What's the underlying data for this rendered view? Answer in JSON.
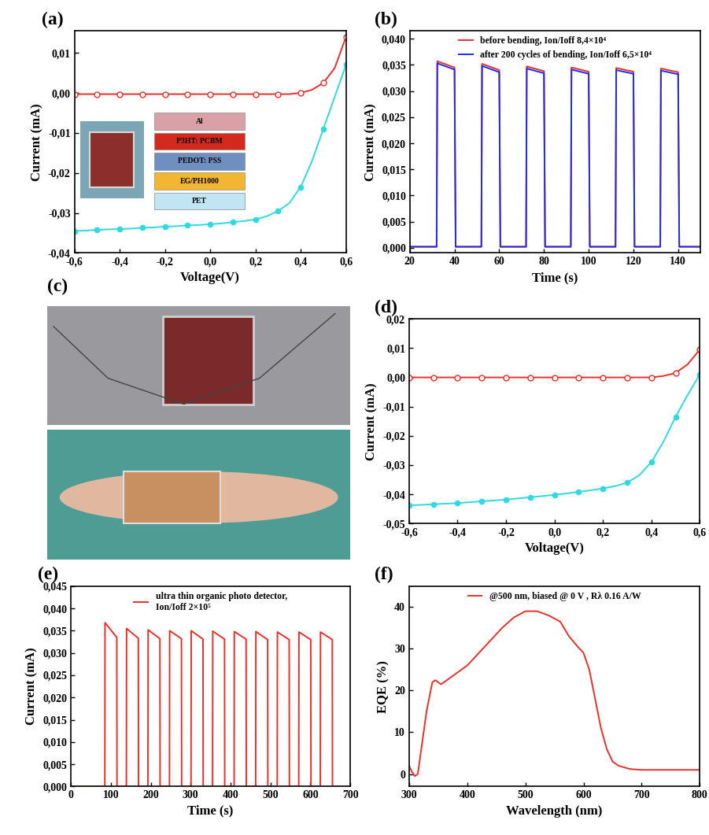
{
  "chart_data": [
    {
      "type": "line",
      "title": "(a)",
      "x_label": "Voltage(V)",
      "y_label": "Current (mA)",
      "x": [
        -0.6,
        -0.55,
        -0.5,
        -0.45,
        -0.4,
        -0.35,
        -0.3,
        -0.25,
        -0.2,
        -0.15,
        -0.1,
        -0.05,
        0.0,
        0.05,
        0.1,
        0.15,
        0.2,
        0.25,
        0.3,
        0.35,
        0.4,
        0.45,
        0.5,
        0.55,
        0.6
      ],
      "xlim": [
        -0.6,
        0.6
      ],
      "xticks": [
        {
          "value": -0.6,
          "label": "-0,6"
        },
        {
          "value": -0.4,
          "label": "-0,4"
        },
        {
          "value": -0.2,
          "label": "-0,2"
        },
        {
          "value": 0.0,
          "label": "0,0"
        },
        {
          "value": 0.2,
          "label": "0,2"
        },
        {
          "value": 0.4,
          "label": "0,4"
        },
        {
          "value": 0.6,
          "label": "0,6"
        }
      ],
      "ylim": [
        -0.04,
        0.0155
      ],
      "yticks": [
        {
          "value": -0.04,
          "label": "-0,04"
        },
        {
          "value": -0.03,
          "label": "-0,03"
        },
        {
          "value": -0.02,
          "label": "-0,02"
        },
        {
          "value": -0.01,
          "label": "-0,01"
        },
        {
          "value": 0.0,
          "label": "0,00"
        },
        {
          "value": 0.01,
          "label": "0,01"
        }
      ],
      "annotations": [
        "Al",
        "P3HT: PCBM",
        "PEDOT: PSS",
        "EG/PH1000",
        "PET"
      ],
      "series": [
        {
          "color": "#e8302a",
          "marker": "open_circle",
          "line_style": "solid",
          "values": [
            -0.0003,
            -0.0003,
            -0.0003,
            -0.0003,
            -0.0003,
            -0.0003,
            -0.0003,
            -0.0003,
            -0.0003,
            -0.0003,
            -0.0003,
            -0.0003,
            -0.0003,
            -0.0003,
            -0.0003,
            -0.0003,
            -0.0003,
            -0.0003,
            -0.0003,
            -0.0003,
            0.0,
            0.0008,
            0.0025,
            0.0062,
            0.014
          ]
        },
        {
          "color": "#2ed9e0",
          "marker": "circle",
          "line_style": "solid",
          "values": [
            -0.0345,
            -0.0344,
            -0.0342,
            -0.0341,
            -0.034,
            -0.0339,
            -0.0337,
            -0.0336,
            -0.0334,
            -0.0333,
            -0.0331,
            -0.033,
            -0.0328,
            -0.0326,
            -0.0323,
            -0.032,
            -0.0316,
            -0.0308,
            -0.0295,
            -0.0275,
            -0.0235,
            -0.017,
            -0.009,
            -0.001,
            0.007
          ]
        }
      ]
    },
    {
      "type": "line",
      "title": "(b)",
      "x_label": "Time (s)",
      "y_label": "Current (mA)",
      "legend": "upper center",
      "x": [
        20,
        32,
        32.3,
        40,
        40.5,
        52,
        52.3,
        60,
        60.5,
        72,
        72.3,
        80,
        80.5,
        92,
        92.3,
        100,
        100.5,
        112,
        112.3,
        120,
        120.5,
        132,
        132.3,
        140,
        140.5,
        150
      ],
      "xlim": [
        20,
        150
      ],
      "xticks": [
        20,
        40,
        60,
        80,
        100,
        120,
        140
      ],
      "ylim": [
        -0.001,
        0.0415
      ],
      "yticks": [
        {
          "value": 0.0,
          "label": "0,000"
        },
        {
          "value": 0.005,
          "label": "0,005"
        },
        {
          "value": 0.01,
          "label": "0,010"
        },
        {
          "value": 0.015,
          "label": "0,015"
        },
        {
          "value": 0.02,
          "label": "0,020"
        },
        {
          "value": 0.025,
          "label": "0,025"
        },
        {
          "value": 0.03,
          "label": "0,030"
        },
        {
          "value": 0.035,
          "label": "0,035"
        },
        {
          "value": 0.04,
          "label": "0,040"
        }
      ],
      "series": [
        {
          "name": "before bending, Ion/Ioff 8,4×10⁴",
          "color": "#e8302a",
          "marker": "none",
          "line_style": "solid",
          "values": [
            0.0002,
            0.0002,
            0.0357,
            0.0345,
            0.0002,
            0.0002,
            0.0352,
            0.034,
            0.0002,
            0.0002,
            0.0347,
            0.0338,
            0.0002,
            0.0002,
            0.0345,
            0.0337,
            0.0002,
            0.0002,
            0.0344,
            0.0337,
            0.0002,
            0.0002,
            0.0343,
            0.0336,
            0.0002,
            0.0002
          ]
        },
        {
          "name": "after 200 cycles of bending, Ion/Ioff 6,5×10⁴",
          "color": "#1f2ee8",
          "marker": "none",
          "line_style": "solid",
          "values": [
            0.0002,
            0.0002,
            0.0353,
            0.0341,
            0.0002,
            0.0002,
            0.0348,
            0.0336,
            0.0002,
            0.0002,
            0.0343,
            0.0334,
            0.0002,
            0.0002,
            0.0341,
            0.0333,
            0.0002,
            0.0002,
            0.034,
            0.0333,
            0.0002,
            0.0002,
            0.0339,
            0.0332,
            0.0002,
            0.0002
          ]
        }
      ]
    },
    {
      "type": "line",
      "title": "(d)",
      "x_label": "Voltage(V)",
      "y_label": "Current (mA)",
      "x": [
        -0.6,
        -0.55,
        -0.5,
        -0.45,
        -0.4,
        -0.35,
        -0.3,
        -0.25,
        -0.2,
        -0.15,
        -0.1,
        -0.05,
        0.0,
        0.05,
        0.1,
        0.15,
        0.2,
        0.25,
        0.3,
        0.35,
        0.4,
        0.45,
        0.5,
        0.55,
        0.6
      ],
      "xlim": [
        -0.6,
        0.6
      ],
      "xticks": [
        {
          "value": -0.6,
          "label": "-0,6"
        },
        {
          "value": -0.4,
          "label": "-0,4"
        },
        {
          "value": -0.2,
          "label": "-0,2"
        },
        {
          "value": 0.0,
          "label": "0,0"
        },
        {
          "value": 0.2,
          "label": "0,2"
        },
        {
          "value": 0.4,
          "label": "0,4"
        },
        {
          "value": 0.6,
          "label": "0,6"
        }
      ],
      "ylim": [
        -0.05,
        0.02
      ],
      "yticks": [
        {
          "value": -0.05,
          "label": "-0,05"
        },
        {
          "value": -0.04,
          "label": "-0,04"
        },
        {
          "value": -0.03,
          "label": "-0,03"
        },
        {
          "value": -0.02,
          "label": "-0,02"
        },
        {
          "value": -0.01,
          "label": "-0,01"
        },
        {
          "value": 0.0,
          "label": "0,00"
        },
        {
          "value": 0.01,
          "label": "0,01"
        },
        {
          "value": 0.02,
          "label": "0,02"
        }
      ],
      "series": [
        {
          "color": "#e8302a",
          "marker": "open_circle",
          "line_style": "solid",
          "values": [
            0.0,
            0.0,
            0.0,
            0.0,
            0.0,
            0.0,
            0.0,
            0.0,
            0.0,
            0.0,
            0.0,
            0.0,
            0.0,
            0.0,
            0.0,
            0.0,
            0.0,
            0.0,
            0.0,
            0.0,
            0.0,
            0.0005,
            0.0015,
            0.0045,
            0.0095
          ]
        },
        {
          "color": "#2ed9e0",
          "marker": "circle",
          "line_style": "solid",
          "values": [
            -0.0438,
            -0.0436,
            -0.0434,
            -0.0432,
            -0.043,
            -0.0427,
            -0.0424,
            -0.0421,
            -0.0418,
            -0.0414,
            -0.041,
            -0.0406,
            -0.0402,
            -0.0397,
            -0.0392,
            -0.0386,
            -0.038,
            -0.0372,
            -0.036,
            -0.0335,
            -0.029,
            -0.022,
            -0.0135,
            -0.006,
            0.001
          ]
        }
      ]
    },
    {
      "type": "line",
      "title": "(e)",
      "x_label": "Time (s)",
      "y_label": "Current (mA)",
      "legend": "upper center",
      "x": [
        0,
        85,
        85.5,
        115,
        115.5,
        139,
        139.5,
        169,
        169.5,
        193,
        193.5,
        223,
        223.5,
        247,
        247.5,
        277,
        277.5,
        301,
        301.5,
        331,
        331.5,
        355,
        355.5,
        385,
        385.5,
        409,
        409.5,
        439,
        439.5,
        463,
        463.5,
        493,
        493.5,
        517,
        517.5,
        547,
        547.5,
        571,
        571.5,
        601,
        601.5,
        625,
        625.5,
        655,
        655.5,
        700
      ],
      "xlim": [
        0,
        700
      ],
      "xticks": [
        0,
        100,
        200,
        300,
        400,
        500,
        600,
        700
      ],
      "ylim": [
        0,
        0.045
      ],
      "yticks": [
        {
          "value": 0.0,
          "label": "0,000"
        },
        {
          "value": 0.005,
          "label": "0,005"
        },
        {
          "value": 0.01,
          "label": "0,010"
        },
        {
          "value": 0.015,
          "label": "0,015"
        },
        {
          "value": 0.02,
          "label": "0,020"
        },
        {
          "value": 0.025,
          "label": "0,025"
        },
        {
          "value": 0.03,
          "label": "0,030"
        },
        {
          "value": 0.035,
          "label": "0,035"
        },
        {
          "value": 0.04,
          "label": "0,040"
        },
        {
          "value": 0.045,
          "label": "0,045"
        }
      ],
      "series": [
        {
          "name": "ultra thin organic photo detector,\nIon/Ioff 2×10⁵",
          "color": "#e8302a",
          "marker": "none",
          "line_style": "solid",
          "values": [
            0.0,
            0.0,
            0.0368,
            0.0335,
            0.0,
            0.0,
            0.0355,
            0.0333,
            0.0,
            0.0,
            0.0352,
            0.0332,
            0.0,
            0.0,
            0.035,
            0.0332,
            0.0,
            0.0,
            0.035,
            0.0331,
            0.0,
            0.0,
            0.0349,
            0.0331,
            0.0,
            0.0,
            0.0348,
            0.0331,
            0.0,
            0.0,
            0.0348,
            0.033,
            0.0,
            0.0,
            0.0347,
            0.033,
            0.0,
            0.0,
            0.0347,
            0.033,
            0.0,
            0.0,
            0.0347,
            0.033,
            0.0,
            0.0
          ]
        }
      ]
    },
    {
      "type": "line",
      "title": "(f)",
      "x_label": "Wavelength (nm)",
      "y_label": "EQE (%)",
      "legend": "upper center",
      "x": [
        300,
        305,
        310,
        315,
        320,
        330,
        340,
        345,
        355,
        365,
        380,
        400,
        420,
        440,
        460,
        480,
        500,
        520,
        540,
        560,
        575,
        590,
        600,
        610,
        620,
        630,
        640,
        650,
        660,
        680,
        700,
        750,
        800
      ],
      "xlim": [
        300,
        800
      ],
      "xticks": [
        300,
        400,
        500,
        600,
        700,
        800
      ],
      "ylim": [
        -3,
        45
      ],
      "yticks": [
        0,
        10,
        20,
        30,
        40
      ],
      "series": [
        {
          "name": "@500 nm, biased @ 0 V , Rλ 0.16 A/W",
          "color": "#e8302a",
          "marker": "none",
          "line_style": "solid",
          "values": [
            2,
            0.5,
            -0.5,
            0,
            5,
            15,
            22,
            22.5,
            21.5,
            22.5,
            24,
            26,
            29,
            32,
            35,
            37.5,
            39,
            39,
            38,
            36.5,
            33,
            30.5,
            29,
            25,
            18,
            11,
            6,
            3,
            2,
            1.2,
            1,
            1,
            1
          ]
        }
      ]
    }
  ],
  "photo_panel": {
    "title": "(c)"
  }
}
